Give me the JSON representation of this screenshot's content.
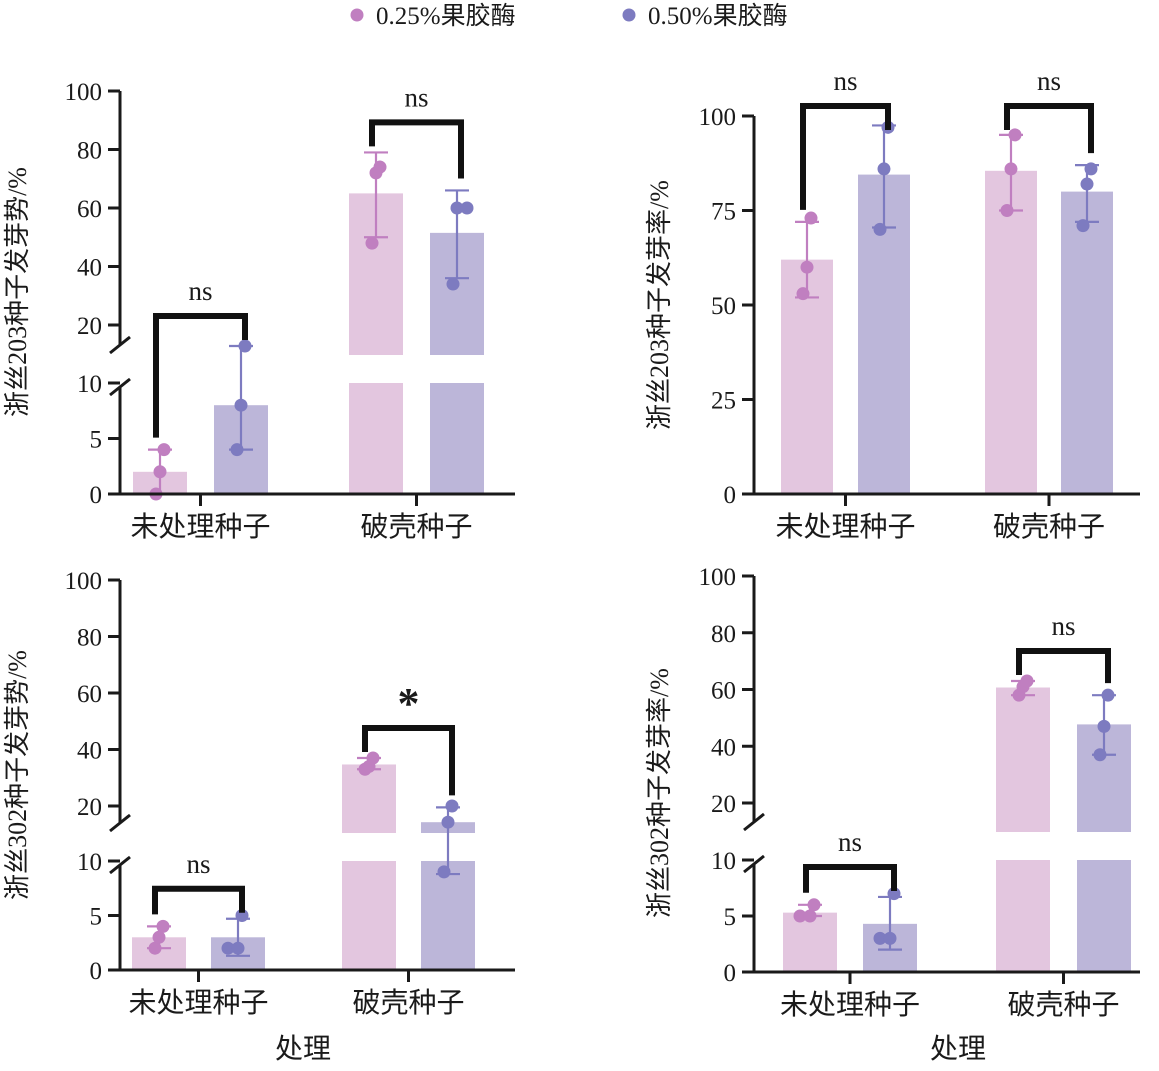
{
  "legend": [
    {
      "label": "0.25%果胶酶",
      "color_key": "c1"
    },
    {
      "label": "0.50%果胶酶",
      "color_key": "c2"
    }
  ],
  "colors": {
    "c1": {
      "bar": "#e3c6df",
      "point": "#c07fc0",
      "err": "#c07fc0"
    },
    "c2": {
      "bar": "#bcb6d9",
      "point": "#7d7bc0",
      "err": "#7d7bc0"
    }
  },
  "chart_data": [
    {
      "type": "bar",
      "ylabel": "浙丝203种子发芽势/%",
      "xlabel": "",
      "categories": [
        "未处理种子",
        "破壳种子"
      ],
      "broken_axis": true,
      "lower_ticks": [
        "0",
        "5",
        "10"
      ],
      "upper_ticks": [
        "20",
        "40",
        "60",
        "80",
        "100"
      ],
      "series": [
        {
          "name": "0.25%果胶酶",
          "values": [
            2,
            65
          ],
          "err": [
            [
              0,
              4
            ],
            [
              50,
              79
            ]
          ],
          "points": [
            [
              0,
              2,
              4
            ],
            [
              48,
              72,
              74
            ]
          ]
        },
        {
          "name": "0.50%果胶酶",
          "values": [
            8,
            51.5
          ],
          "err": [
            [
              4,
              13
            ],
            [
              36,
              66
            ]
          ],
          "points": [
            [
              4,
              8,
              13
            ],
            [
              34,
              60,
              60
            ]
          ]
        }
      ],
      "significance": [
        "ns",
        "ns"
      ]
    },
    {
      "type": "bar",
      "ylabel": "浙丝203种子发芽率/%",
      "xlabel": "",
      "categories": [
        "未处理种子",
        "破壳种子"
      ],
      "broken_axis": false,
      "ticks": [
        "0",
        "25",
        "50",
        "75",
        "100"
      ],
      "series": [
        {
          "name": "0.25%果胶酶",
          "values": [
            62,
            85.5
          ],
          "err": [
            [
              52,
              72
            ],
            [
              75,
              95
            ]
          ],
          "points": [
            [
              53,
              60,
              73
            ],
            [
              75,
              86,
              95
            ]
          ]
        },
        {
          "name": "0.50%果胶酶",
          "values": [
            84.5,
            80
          ],
          "err": [
            [
              70.5,
              97.5
            ],
            [
              72,
              87
            ]
          ],
          "points": [
            [
              70,
              86,
              97
            ],
            [
              71,
              82,
              86
            ]
          ]
        }
      ],
      "significance": [
        "ns",
        "ns"
      ]
    },
    {
      "type": "bar",
      "ylabel": "浙丝302种子发芽势/%",
      "xlabel": "处理",
      "categories": [
        "未处理种子",
        "破壳种子"
      ],
      "broken_axis": true,
      "lower_ticks": [
        "0",
        "5",
        "10"
      ],
      "upper_ticks": [
        "20",
        "40",
        "60",
        "80",
        "100"
      ],
      "series": [
        {
          "name": "0.25%果胶酶",
          "values": [
            3,
            34.7
          ],
          "err": [
            [
              2,
              4
            ],
            [
              33,
              37
            ]
          ],
          "points": [
            [
              2,
              3,
              4
            ],
            [
              33,
              34,
              37
            ]
          ]
        },
        {
          "name": "0.50%果胶酶",
          "values": [
            3,
            14
          ],
          "err": [
            [
              1.3,
              4.7
            ],
            [
              8.8,
              19.5
            ]
          ],
          "points": [
            [
              2,
              2,
              5
            ],
            [
              9,
              14,
              20
            ]
          ]
        }
      ],
      "significance": [
        "ns",
        "*"
      ]
    },
    {
      "type": "bar",
      "ylabel": "浙丝302种子发芽率/%",
      "xlabel": "处理",
      "categories": [
        "未处理种子",
        "破壳种子"
      ],
      "broken_axis": true,
      "lower_ticks": [
        "0",
        "5",
        "10"
      ],
      "upper_ticks": [
        "20",
        "40",
        "60",
        "80",
        "100"
      ],
      "series": [
        {
          "name": "0.25%果胶酶",
          "values": [
            5.3,
            60.7
          ],
          "err": [
            [
              5,
              6
            ],
            [
              58,
              63
            ]
          ],
          "points": [
            [
              5,
              5,
              6
            ],
            [
              58,
              61,
              63
            ]
          ]
        },
        {
          "name": "0.50%果胶酶",
          "values": [
            4.3,
            47.7
          ],
          "err": [
            [
              2,
              6.7
            ],
            [
              37,
              58
            ]
          ],
          "points": [
            [
              3,
              3,
              7
            ],
            [
              37,
              47,
              58
            ]
          ]
        }
      ],
      "significance": [
        "ns",
        "ns"
      ]
    }
  ]
}
